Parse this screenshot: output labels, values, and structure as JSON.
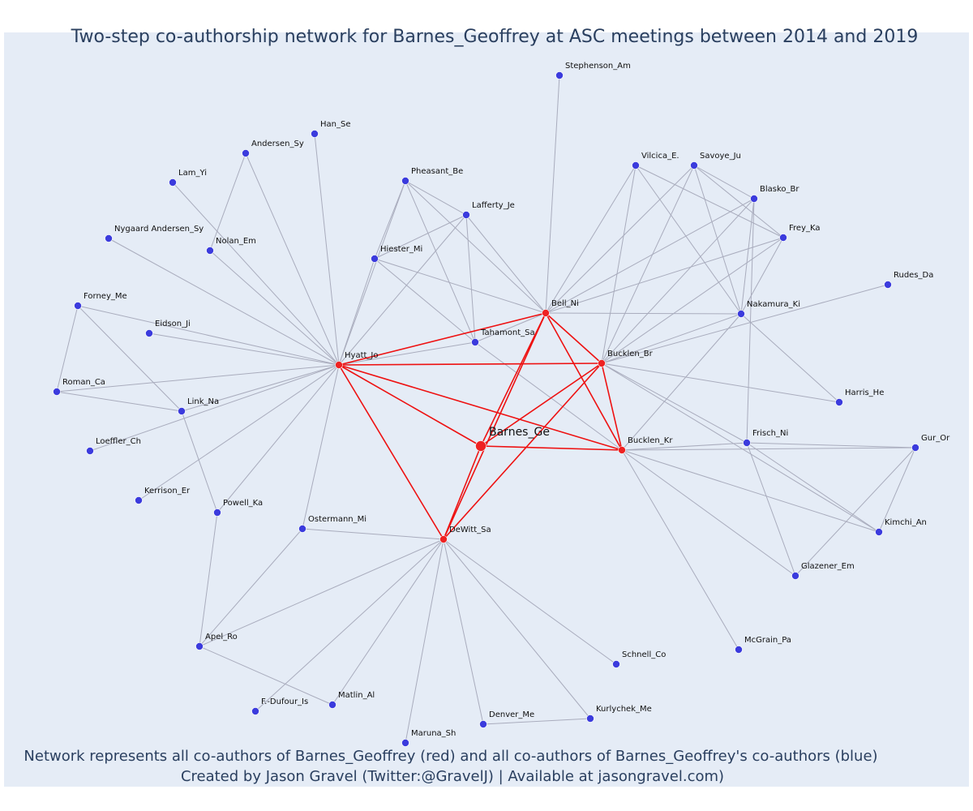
{
  "title": "Two-step co-authorship network for Barnes_Geoffrey at ASC meetings between 2014 and 2019",
  "caption_line1": "Network represents all co-authors of Barnes_Geoffrey (red) and all co-authors of Barnes_Geoffrey's co-authors (blue)",
  "caption_line2": "Created by Jason Gravel (Twitter:@GravelJ) | Available at jasongravel.com)",
  "colors": {
    "plot_background": "#e5ecf6",
    "direct_node": "#ee2222",
    "indirect_node": "#3b3bdd",
    "direct_edge": "#ee1111",
    "indirect_edge": "#a9acbd",
    "title_text": "#2a3f5f"
  },
  "center": "Barnes_Ge",
  "direct_coauthors": [
    "Hyatt_Jo",
    "Bell_Ni",
    "Bucklen_Br",
    "Bucklen_Kr",
    "DeWitt_Sa"
  ],
  "indirect_coauthors": [
    "Stephenson_Am",
    "Han_Se",
    "Andersen_Sy",
    "Lam_Yi",
    "Pheasant_Be",
    "Vilcica_E.",
    "Savoye_Ju",
    "Blasko_Br",
    "Lafferty_Je",
    "Frey_Ka",
    "Nygaard Andersen_Sy",
    "Nolan_Em",
    "Hiester_Mi",
    "Rudes_Da",
    "Forney_Me",
    "Nakamura_Ki",
    "Eidson_Ji",
    "Tahamont_Sa",
    "Harris_He",
    "Roman_Ca",
    "Link_Na",
    "Frisch_Ni",
    "Gur_Or",
    "Loeffler_Ch",
    "Kerrison_Er",
    "Powell_Ka",
    "Ostermann_Mi",
    "Kimchi_An",
    "Glazener_Em",
    "Apel_Ro",
    "McGrain_Pa",
    "Schnell_Co",
    "F.-Dufour_Is",
    "Matlin_Al",
    "Kurlychek_Me",
    "Denver_Me",
    "Maruna_Sh"
  ],
  "edges": [
    [
      "Barnes_Ge",
      "Hyatt_Jo"
    ],
    [
      "Barnes_Ge",
      "Bell_Ni"
    ],
    [
      "Barnes_Ge",
      "Bucklen_Br"
    ],
    [
      "Barnes_Ge",
      "Bucklen_Kr"
    ],
    [
      "Barnes_Ge",
      "DeWitt_Sa"
    ],
    [
      "Hyatt_Jo",
      "Bell_Ni"
    ],
    [
      "Hyatt_Jo",
      "Bucklen_Br"
    ],
    [
      "Hyatt_Jo",
      "Bucklen_Kr"
    ],
    [
      "Hyatt_Jo",
      "DeWitt_Sa"
    ],
    [
      "Bell_Ni",
      "Bucklen_Br"
    ],
    [
      "Bell_Ni",
      "Bucklen_Kr"
    ],
    [
      "Bell_Ni",
      "DeWitt_Sa"
    ],
    [
      "Bucklen_Br",
      "Bucklen_Kr"
    ],
    [
      "Bucklen_Br",
      "DeWitt_Sa"
    ],
    [
      "Stephenson_Am",
      "Bell_Ni"
    ],
    [
      "Han_Se",
      "Hyatt_Jo"
    ],
    [
      "Andersen_Sy",
      "Hyatt_Jo"
    ],
    [
      "Andersen_Sy",
      "Nolan_Em"
    ],
    [
      "Lam_Yi",
      "Hyatt_Jo"
    ],
    [
      "Nygaard Andersen_Sy",
      "Hyatt_Jo"
    ],
    [
      "Nolan_Em",
      "Hyatt_Jo"
    ],
    [
      "Pheasant_Be",
      "Hyatt_Jo"
    ],
    [
      "Pheasant_Be",
      "Hiester_Mi"
    ],
    [
      "Pheasant_Be",
      "Lafferty_Je"
    ],
    [
      "Pheasant_Be",
      "Bell_Ni"
    ],
    [
      "Pheasant_Be",
      "Tahamont_Sa"
    ],
    [
      "Lafferty_Je",
      "Hyatt_Jo"
    ],
    [
      "Lafferty_Je",
      "Hiester_Mi"
    ],
    [
      "Lafferty_Je",
      "Bell_Ni"
    ],
    [
      "Lafferty_Je",
      "Tahamont_Sa"
    ],
    [
      "Hiester_Mi",
      "Hyatt_Jo"
    ],
    [
      "Hiester_Mi",
      "Bell_Ni"
    ],
    [
      "Hiester_Mi",
      "Tahamont_Sa"
    ],
    [
      "Tahamont_Sa",
      "Hyatt_Jo"
    ],
    [
      "Tahamont_Sa",
      "Bell_Ni"
    ],
    [
      "Tahamont_Sa",
      "Bucklen_Kr"
    ],
    [
      "Vilcica_E.",
      "Bell_Ni"
    ],
    [
      "Vilcica_E.",
      "Bucklen_Br"
    ],
    [
      "Vilcica_E.",
      "Nakamura_Ki"
    ],
    [
      "Vilcica_E.",
      "Frey_Ka"
    ],
    [
      "Savoye_Ju",
      "Bell_Ni"
    ],
    [
      "Savoye_Ju",
      "Bucklen_Br"
    ],
    [
      "Savoye_Ju",
      "Nakamura_Ki"
    ],
    [
      "Savoye_Ju",
      "Blasko_Br"
    ],
    [
      "Savoye_Ju",
      "Frey_Ka"
    ],
    [
      "Blasko_Br",
      "Bell_Ni"
    ],
    [
      "Blasko_Br",
      "Bucklen_Br"
    ],
    [
      "Blasko_Br",
      "Nakamura_Ki"
    ],
    [
      "Blasko_Br",
      "Frisch_Ni"
    ],
    [
      "Frey_Ka",
      "Bell_Ni"
    ],
    [
      "Frey_Ka",
      "Bucklen_Br"
    ],
    [
      "Frey_Ka",
      "Nakamura_Ki"
    ],
    [
      "Rudes_Da",
      "Bucklen_Br"
    ],
    [
      "Nakamura_Ki",
      "Bell_Ni"
    ],
    [
      "Nakamura_Ki",
      "Bucklen_Br"
    ],
    [
      "Nakamura_Ki",
      "Bucklen_Kr"
    ],
    [
      "Nakamura_Ki",
      "Harris_He"
    ],
    [
      "Harris_He",
      "Bucklen_Br"
    ],
    [
      "Frisch_Ni",
      "Bucklen_Br"
    ],
    [
      "Frisch_Ni",
      "Bucklen_Kr"
    ],
    [
      "Frisch_Ni",
      "Glazener_Em"
    ],
    [
      "Frisch_Ni",
      "Kimchi_An"
    ],
    [
      "Frisch_Ni",
      "Gur_Or"
    ],
    [
      "Gur_Or",
      "Bucklen_Kr"
    ],
    [
      "Gur_Or",
      "Kimchi_An"
    ],
    [
      "Gur_Or",
      "Glazener_Em"
    ],
    [
      "Kimchi_An",
      "Bucklen_Kr"
    ],
    [
      "Kimchi_An",
      "Bucklen_Br"
    ],
    [
      "Glazener_Em",
      "Bucklen_Kr"
    ],
    [
      "McGrain_Pa",
      "Bucklen_Kr"
    ],
    [
      "Forney_Me",
      "Hyatt_Jo"
    ],
    [
      "Forney_Me",
      "Roman_Ca"
    ],
    [
      "Forney_Me",
      "Link_Na"
    ],
    [
      "Eidson_Ji",
      "Hyatt_Jo"
    ],
    [
      "Roman_Ca",
      "Hyatt_Jo"
    ],
    [
      "Roman_Ca",
      "Link_Na"
    ],
    [
      "Link_Na",
      "Hyatt_Jo"
    ],
    [
      "Link_Na",
      "Powell_Ka"
    ],
    [
      "Loeffler_Ch",
      "Hyatt_Jo"
    ],
    [
      "Kerrison_Er",
      "Hyatt_Jo"
    ],
    [
      "Powell_Ka",
      "Hyatt_Jo"
    ],
    [
      "Powell_Ka",
      "Apel_Ro"
    ],
    [
      "Ostermann_Mi",
      "Hyatt_Jo"
    ],
    [
      "Ostermann_Mi",
      "DeWitt_Sa"
    ],
    [
      "Ostermann_Mi",
      "Apel_Ro"
    ],
    [
      "Apel_Ro",
      "DeWitt_Sa"
    ],
    [
      "Apel_Ro",
      "Matlin_Al"
    ],
    [
      "Schnell_Co",
      "DeWitt_Sa"
    ],
    [
      "F.-Dufour_Is",
      "DeWitt_Sa"
    ],
    [
      "Matlin_Al",
      "DeWitt_Sa"
    ],
    [
      "Kurlychek_Me",
      "DeWitt_Sa"
    ],
    [
      "Kurlychek_Me",
      "Denver_Me"
    ],
    [
      "Denver_Me",
      "DeWitt_Sa"
    ],
    [
      "Maruna_Sh",
      "DeWitt_Sa"
    ]
  ]
}
